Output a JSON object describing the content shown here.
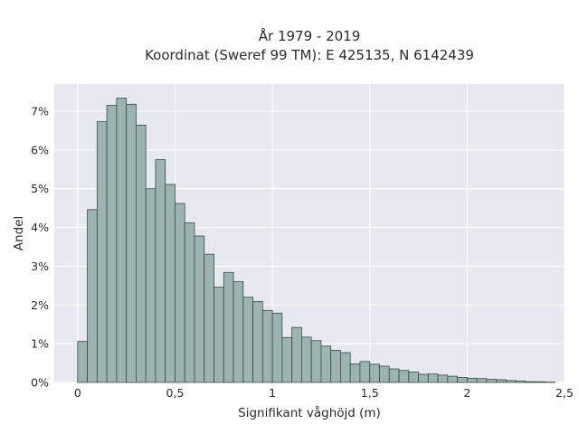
{
  "chart_data": {
    "type": "bar",
    "title": "År 1979 - 2019",
    "subtitle": "Koordinat (Sweref 99 TM): E 425135, N 6142439",
    "xlabel": "Signifikant våghöjd (m)",
    "ylabel": "Andel",
    "xlim": [
      -0.12,
      2.5
    ],
    "ylim": [
      0,
      7.7
    ],
    "x_ticks": [
      0,
      0.5,
      1,
      1.5,
      2,
      2.5
    ],
    "x_tick_labels": [
      "0",
      "0,5",
      "1",
      "1,5",
      "2",
      "2,5"
    ],
    "y_ticks": [
      0,
      1,
      2,
      3,
      4,
      5,
      6,
      7
    ],
    "y_tick_labels": [
      "0%",
      "1%",
      "2%",
      "3%",
      "4%",
      "5%",
      "6%",
      "7%"
    ],
    "bin_width": 0.05,
    "bin_starts": [
      0.0,
      0.05,
      0.1,
      0.15,
      0.2,
      0.25,
      0.3,
      0.35,
      0.4,
      0.45,
      0.5,
      0.55,
      0.6,
      0.65,
      0.7,
      0.75,
      0.8,
      0.85,
      0.9,
      0.95,
      1.0,
      1.05,
      1.1,
      1.15,
      1.2,
      1.25,
      1.3,
      1.35,
      1.4,
      1.45,
      1.5,
      1.55,
      1.6,
      1.65,
      1.7,
      1.75,
      1.8,
      1.85,
      1.9,
      1.95,
      2.0,
      2.05,
      2.1,
      2.15,
      2.2,
      2.25,
      2.3,
      2.35,
      2.4
    ],
    "values": [
      1.06,
      4.46,
      6.73,
      7.15,
      7.34,
      7.18,
      6.64,
      5.0,
      5.75,
      5.11,
      4.62,
      4.12,
      3.78,
      3.31,
      2.46,
      2.84,
      2.6,
      2.2,
      2.09,
      1.86,
      1.79,
      1.16,
      1.42,
      1.17,
      1.08,
      0.94,
      0.83,
      0.77,
      0.48,
      0.54,
      0.47,
      0.42,
      0.35,
      0.31,
      0.27,
      0.21,
      0.22,
      0.19,
      0.16,
      0.13,
      0.11,
      0.1,
      0.08,
      0.07,
      0.05,
      0.04,
      0.02,
      0.02,
      0.01
    ],
    "grid": true,
    "colors": {
      "bar_fill": "#9bb3b1",
      "bar_edge": "#3c4a4a",
      "plot_background": "#e8e8f1",
      "grid": "#ffffff"
    }
  }
}
